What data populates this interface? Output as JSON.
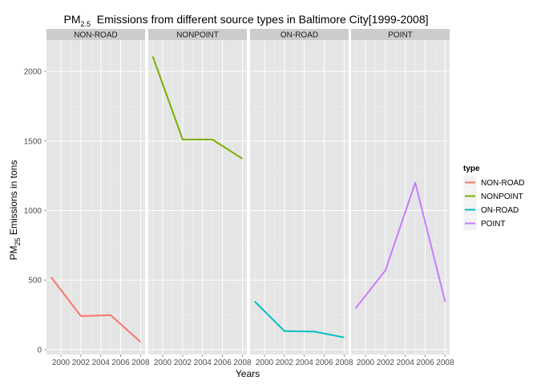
{
  "chart_data": {
    "type": "line",
    "title": {
      "prefix": "PM",
      "subscript": "2.5",
      "rest": "  Emissions from different source types in Baltimore City[1999-2008]"
    },
    "xlabel": "Years",
    "ylabel": {
      "prefix": "PM",
      "subscript": "25",
      "rest": " Emissions in tons"
    },
    "x": [
      1999,
      2002,
      2005,
      2008
    ],
    "x_ticks": [
      "2000",
      "2002",
      "2004",
      "2006",
      "2008"
    ],
    "y_ticks": [
      "0",
      "500",
      "1000",
      "1500",
      "2000"
    ],
    "xlim": [
      1998.55,
      2008.45
    ],
    "ylim": [
      -35,
      2225
    ],
    "panels": [
      "NON-ROAD",
      "NONPOINT",
      "ON-ROAD",
      "POINT"
    ],
    "legend_title": "type",
    "legend_position": "right",
    "grid": true,
    "series": [
      {
        "name": "NON-ROAD",
        "color": "#F8766D",
        "values": [
          522,
          242,
          248,
          55
        ]
      },
      {
        "name": "NONPOINT",
        "color": "#7CAE00",
        "values": [
          2108,
          1510,
          1510,
          1373
        ]
      },
      {
        "name": "ON-ROAD",
        "color": "#00BFC4",
        "values": [
          347,
          134,
          130,
          88
        ]
      },
      {
        "name": "POINT",
        "color": "#C77CFF",
        "values": [
          297,
          570,
          1200,
          345
        ]
      }
    ]
  }
}
